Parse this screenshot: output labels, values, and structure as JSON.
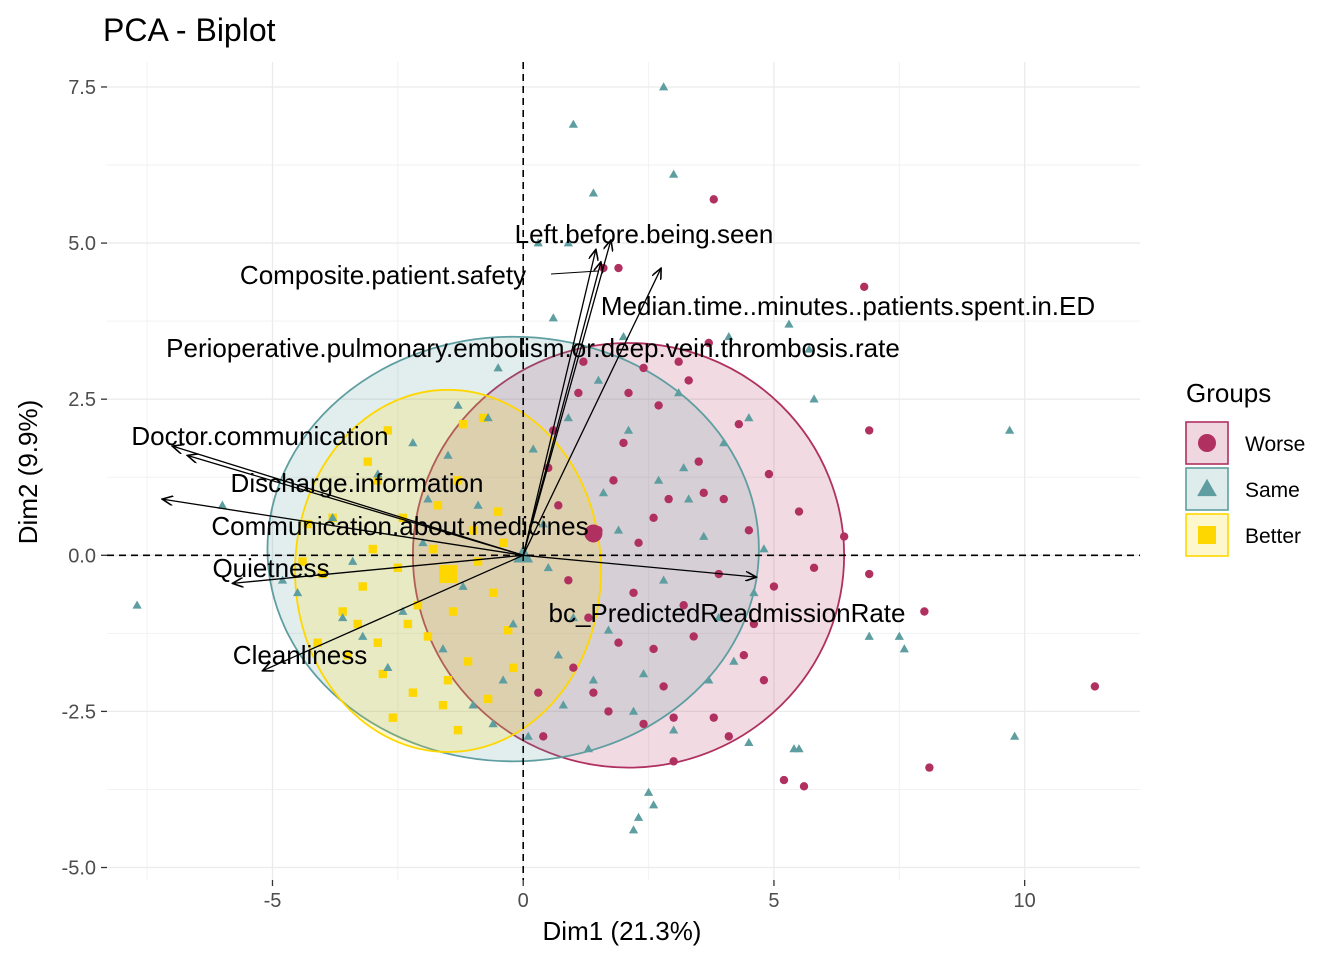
{
  "chart_data": {
    "type": "scatter",
    "title": "PCA - Biplot",
    "xlabel": "Dim1 (21.3%)",
    "ylabel": "Dim2 (9.9%)",
    "xlim": [
      -8.3,
      12.3
    ],
    "ylim": [
      -5.2,
      7.9
    ],
    "x_ticks": [
      -5,
      0,
      5,
      10
    ],
    "x_tick_labels": [
      "-5",
      "0",
      "5",
      "10"
    ],
    "y_ticks": [
      -5.0,
      -2.5,
      0.0,
      2.5,
      5.0,
      7.5
    ],
    "y_tick_labels": [
      "-5.0",
      "-2.5",
      "0.0",
      "2.5",
      "5.0",
      "7.5"
    ],
    "grid": true,
    "reference_lines": {
      "x": 0,
      "y": 0,
      "style": "dashed"
    },
    "legend": {
      "title": "Groups",
      "placement": "right"
    },
    "groups": [
      {
        "name": "Worse",
        "color": "#B03060",
        "marker": "circle",
        "mean": [
          1.4,
          0.35
        ],
        "ellipse": {
          "cx": 2.1,
          "cy": 0.0,
          "rx": 4.3,
          "ry": 3.4
        },
        "points": [
          [
            3.8,
            5.7
          ],
          [
            6.8,
            4.3
          ],
          [
            1.6,
            4.6
          ],
          [
            1.9,
            4.6
          ],
          [
            3.7,
            3.4
          ],
          [
            2.4,
            3.0
          ],
          [
            4.3,
            2.1
          ],
          [
            6.9,
            2.0
          ],
          [
            5.5,
            0.7
          ],
          [
            6.4,
            0.3
          ],
          [
            6.9,
            -0.3
          ],
          [
            8.0,
            -0.9
          ],
          [
            11.4,
            -2.1
          ],
          [
            8.1,
            -3.4
          ],
          [
            5.2,
            -3.6
          ],
          [
            5.6,
            -3.7
          ],
          [
            3.0,
            -3.3
          ],
          [
            4.1,
            -2.9
          ],
          [
            3.8,
            -2.6
          ],
          [
            4.8,
            -2.0
          ],
          [
            2.6,
            -1.5
          ],
          [
            3.2,
            -0.8
          ],
          [
            4.5,
            0.4
          ],
          [
            5.0,
            -0.5
          ],
          [
            2.9,
            0.9
          ],
          [
            3.5,
            1.5
          ],
          [
            1.8,
            1.2
          ],
          [
            2.2,
            -0.6
          ],
          [
            1.0,
            -1.8
          ],
          [
            0.4,
            -2.9
          ],
          [
            0.3,
            -2.2
          ],
          [
            1.7,
            -2.5
          ],
          [
            2.4,
            -2.7
          ],
          [
            0.6,
            2.0
          ],
          [
            1.1,
            2.6
          ],
          [
            2.7,
            2.4
          ],
          [
            3.1,
            3.1
          ],
          [
            4.0,
            0.9
          ],
          [
            1.5,
            0.4
          ],
          [
            2.3,
            0.2
          ],
          [
            3.4,
            -1.3
          ],
          [
            1.3,
            -1.0
          ],
          [
            0.7,
            0.8
          ],
          [
            4.4,
            -1.6
          ],
          [
            5.8,
            -0.2
          ],
          [
            3.6,
            1.0
          ],
          [
            2.0,
            1.8
          ],
          [
            2.8,
            -2.1
          ],
          [
            0.9,
            -0.4
          ],
          [
            1.9,
            -1.4
          ],
          [
            3.3,
            2.8
          ],
          [
            4.9,
            1.3
          ],
          [
            1.2,
            3.1
          ],
          [
            0.5,
            1.4
          ],
          [
            2.6,
            0.6
          ],
          [
            3.9,
            -0.3
          ],
          [
            1.4,
            -2.2
          ],
          [
            2.1,
            2.6
          ],
          [
            4.6,
            -1.1
          ],
          [
            3.0,
            -2.6
          ]
        ]
      },
      {
        "name": "Same",
        "color": "#5F9EA0",
        "marker": "triangle",
        "mean": [
          0.0,
          0.0
        ],
        "ellipse": {
          "cx": -0.2,
          "cy": 0.1,
          "rx": 4.9,
          "ry": 3.4
        },
        "points": [
          [
            2.8,
            7.5
          ],
          [
            1.0,
            6.9
          ],
          [
            3.0,
            6.1
          ],
          [
            1.4,
            5.8
          ],
          [
            0.3,
            5.0
          ],
          [
            0.9,
            5.0
          ],
          [
            5.3,
            3.7
          ],
          [
            5.7,
            3.3
          ],
          [
            9.7,
            2.0
          ],
          [
            5.8,
            2.5
          ],
          [
            -7.7,
            -0.8
          ],
          [
            7.5,
            -1.3
          ],
          [
            6.9,
            -1.3
          ],
          [
            7.6,
            -1.5
          ],
          [
            9.8,
            -2.9
          ],
          [
            4.5,
            -3.0
          ],
          [
            5.4,
            -3.1
          ],
          [
            2.6,
            -4.0
          ],
          [
            2.3,
            -4.2
          ],
          [
            2.5,
            -3.8
          ],
          [
            2.2,
            -4.4
          ],
          [
            5.5,
            -3.1
          ],
          [
            -6.0,
            0.8
          ],
          [
            -4.8,
            -0.4
          ],
          [
            -4.5,
            -0.6
          ],
          [
            -3.2,
            -1.3
          ],
          [
            -2.2,
            1.8
          ],
          [
            -1.3,
            2.4
          ],
          [
            -0.5,
            3.0
          ],
          [
            0.6,
            3.8
          ],
          [
            2.0,
            3.5
          ],
          [
            4.1,
            3.5
          ],
          [
            4.5,
            2.2
          ],
          [
            3.2,
            1.4
          ],
          [
            1.6,
            1.0
          ],
          [
            0.4,
            0.5
          ],
          [
            -0.9,
            0.8
          ],
          [
            -2.0,
            0.2
          ],
          [
            -3.4,
            -0.1
          ],
          [
            -1.6,
            -1.5
          ],
          [
            -0.4,
            -2.0
          ],
          [
            0.8,
            -2.4
          ],
          [
            1.7,
            -1.2
          ],
          [
            2.8,
            -0.4
          ],
          [
            3.6,
            0.3
          ],
          [
            4.2,
            -1.7
          ],
          [
            3.0,
            -2.8
          ],
          [
            1.3,
            -3.1
          ],
          [
            0.1,
            -2.9
          ],
          [
            -1.0,
            -2.4
          ],
          [
            -2.7,
            -1.8
          ],
          [
            -3.8,
            0.6
          ],
          [
            -2.9,
            1.3
          ],
          [
            -1.5,
            1.6
          ],
          [
            0.9,
            2.2
          ],
          [
            2.1,
            2.0
          ],
          [
            3.3,
            0.9
          ],
          [
            4.8,
            0.1
          ],
          [
            3.9,
            -1.0
          ],
          [
            2.4,
            -1.9
          ],
          [
            1.0,
            -1.0
          ],
          [
            -0.2,
            -1.1
          ],
          [
            -1.2,
            -0.5
          ],
          [
            0.5,
            -0.2
          ],
          [
            1.9,
            0.4
          ],
          [
            2.7,
            1.2
          ],
          [
            0.2,
            1.7
          ],
          [
            -0.7,
            2.2
          ],
          [
            1.5,
            2.8
          ],
          [
            3.1,
            2.6
          ],
          [
            4.0,
            1.8
          ],
          [
            -2.4,
            -0.9
          ],
          [
            -3.6,
            -1.0
          ],
          [
            -1.9,
            0.9
          ],
          [
            0.7,
            -1.6
          ],
          [
            2.2,
            -2.5
          ],
          [
            3.7,
            -2.0
          ],
          [
            4.6,
            -0.6
          ],
          [
            -0.6,
            -2.7
          ],
          [
            1.4,
            -2.0
          ]
        ]
      },
      {
        "name": "Better",
        "color": "#FFD700",
        "marker": "square",
        "mean": [
          -1.5,
          -0.3
        ],
        "ellipse": {
          "cx": -1.5,
          "cy": -0.25,
          "rx": 3.05,
          "ry": 2.9
        },
        "points": [
          [
            -2.7,
            2.0
          ],
          [
            -1.2,
            2.1
          ],
          [
            -0.8,
            2.2
          ],
          [
            -2.9,
            1.2
          ],
          [
            -1.3,
            1.2
          ],
          [
            -0.5,
            0.7
          ],
          [
            -3.8,
            0.6
          ],
          [
            -4.3,
            0.5
          ],
          [
            -4.0,
            -0.3
          ],
          [
            -3.2,
            -0.5
          ],
          [
            -2.5,
            -0.2
          ],
          [
            -1.8,
            0.1
          ],
          [
            -0.9,
            -0.1
          ],
          [
            -2.1,
            -0.8
          ],
          [
            -3.3,
            -1.1
          ],
          [
            -4.1,
            -1.4
          ],
          [
            -3.5,
            -1.6
          ],
          [
            -2.8,
            -1.9
          ],
          [
            -2.2,
            -2.2
          ],
          [
            -1.6,
            -2.4
          ],
          [
            -0.7,
            -2.3
          ],
          [
            -1.1,
            -1.7
          ],
          [
            -0.3,
            -1.2
          ],
          [
            -1.4,
            -0.9
          ],
          [
            -2.4,
            0.6
          ],
          [
            -3.0,
            0.1
          ],
          [
            -1.9,
            -1.3
          ],
          [
            -0.6,
            -0.6
          ],
          [
            -3.6,
            -0.9
          ],
          [
            -2.6,
            -2.6
          ],
          [
            -1.3,
            -2.8
          ],
          [
            -0.2,
            -1.8
          ],
          [
            -1.7,
            0.8
          ],
          [
            -2.9,
            -1.4
          ],
          [
            -4.4,
            -0.1
          ],
          [
            -3.1,
            1.5
          ],
          [
            -1.0,
            0.4
          ],
          [
            -2.3,
            -1.1
          ],
          [
            -0.4,
            0.2
          ],
          [
            -1.5,
            -2.0
          ]
        ]
      }
    ],
    "variables": [
      {
        "name": "Left.before.being.seen",
        "x": 1.75,
        "y": 5.05
      },
      {
        "name": "Composite.patient.safety",
        "x": 1.55,
        "y": 4.7
      },
      {
        "name": "Median.time..minutes..patients.spent.in.ED",
        "x": 2.75,
        "y": 4.6
      },
      {
        "name": "Perioperative.pulmonary.embolism.or.deep.vein.thrombosis.rate",
        "x": 1.45,
        "y": 4.9
      },
      {
        "name": "Doctor.communication",
        "x": -7.0,
        "y": 1.75
      },
      {
        "name": "Discharge.information",
        "x": -6.7,
        "y": 1.6
      },
      {
        "name": "Communication.about.medicines",
        "x": -7.2,
        "y": 0.9
      },
      {
        "name": "Quietness",
        "x": -5.8,
        "y": -0.45
      },
      {
        "name": "Cleanliness",
        "x": -5.2,
        "y": -1.85
      },
      {
        "name": "bc_PredictedReadmissionRate",
        "x": 4.65,
        "y": -0.35
      }
    ]
  }
}
